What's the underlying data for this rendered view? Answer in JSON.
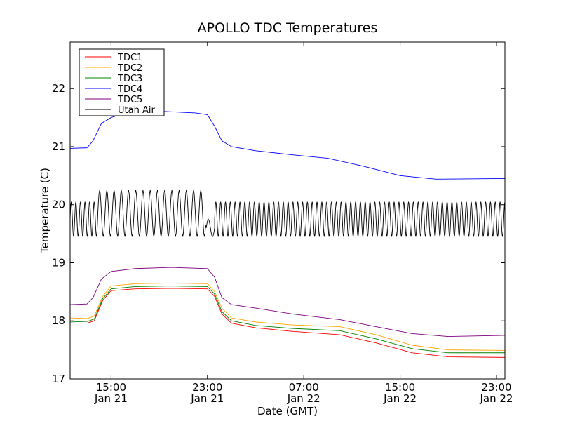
{
  "chart_data": {
    "type": "line",
    "title": "APOLLO TDC Temperatures",
    "xlabel": "Date (GMT)",
    "ylabel": "Temperature (C)",
    "ylim": [
      17,
      22.8
    ],
    "xlim_hours": [
      11.6,
      47.7
    ],
    "yticks": [
      17,
      18,
      19,
      20,
      21,
      22
    ],
    "xticks": [
      {
        "at": 15,
        "line1": "15:00",
        "line2": "Jan 21"
      },
      {
        "at": 23,
        "line1": "23:00",
        "line2": "Jan 21"
      },
      {
        "at": 31,
        "line1": "07:00",
        "line2": "Jan 22"
      },
      {
        "at": 39,
        "line1": "15:00",
        "line2": "Jan 22"
      },
      {
        "at": 47,
        "line1": "23:00",
        "line2": "Jan 22"
      }
    ],
    "legend_position": "top-left",
    "series": [
      {
        "name": "TDC1",
        "color": "#ff0000",
        "x": [
          11.6,
          13.0,
          13.6,
          14.3,
          15.0,
          17.0,
          20.0,
          23.0,
          23.6,
          24.2,
          25.0,
          27.0,
          30.0,
          34.0,
          37.0,
          40.0,
          43.0,
          47.7
        ],
        "y": [
          17.96,
          17.96,
          18.0,
          18.35,
          18.52,
          18.55,
          18.56,
          18.55,
          18.42,
          18.12,
          17.96,
          17.88,
          17.82,
          17.76,
          17.62,
          17.45,
          17.38,
          17.37
        ]
      },
      {
        "name": "TDC2",
        "color": "#ffa500",
        "x": [
          11.6,
          13.0,
          13.6,
          14.3,
          15.0,
          17.0,
          20.0,
          23.0,
          23.6,
          24.2,
          25.0,
          27.0,
          30.0,
          34.0,
          37.0,
          40.0,
          43.0,
          47.7
        ],
        "y": [
          18.05,
          18.04,
          18.08,
          18.42,
          18.6,
          18.64,
          18.65,
          18.64,
          18.5,
          18.22,
          18.05,
          17.98,
          17.93,
          17.9,
          17.76,
          17.58,
          17.5,
          17.49
        ]
      },
      {
        "name": "TDC3",
        "color": "#008000",
        "x": [
          11.6,
          13.0,
          13.6,
          14.3,
          15.0,
          17.0,
          20.0,
          23.0,
          23.6,
          24.2,
          25.0,
          27.0,
          30.0,
          34.0,
          37.0,
          40.0,
          43.0,
          47.7
        ],
        "y": [
          17.98,
          17.99,
          18.03,
          18.38,
          18.55,
          18.59,
          18.6,
          18.59,
          18.46,
          18.16,
          18.0,
          17.92,
          17.87,
          17.83,
          17.69,
          17.52,
          17.45,
          17.45
        ]
      },
      {
        "name": "TDC4",
        "color": "#0000ff",
        "x": [
          11.6,
          13.0,
          13.5,
          14.2,
          15.0,
          16.5,
          18.0,
          20.0,
          22.0,
          23.0,
          23.6,
          24.2,
          25.0,
          27.0,
          30.0,
          33.0,
          36.0,
          39.0,
          42.0,
          47.7
        ],
        "y": [
          20.97,
          20.98,
          21.1,
          21.4,
          21.5,
          21.6,
          21.62,
          21.6,
          21.58,
          21.55,
          21.35,
          21.1,
          21.0,
          20.93,
          20.86,
          20.8,
          20.66,
          20.5,
          20.44,
          20.45
        ]
      },
      {
        "name": "TDC5",
        "color": "#800080",
        "x": [
          11.6,
          13.0,
          13.5,
          14.2,
          15.0,
          17.0,
          20.0,
          23.0,
          23.6,
          24.2,
          25.0,
          27.0,
          30.0,
          34.0,
          37.0,
          40.0,
          43.0,
          47.7
        ],
        "y": [
          18.28,
          18.29,
          18.4,
          18.72,
          18.85,
          18.9,
          18.92,
          18.9,
          18.75,
          18.4,
          18.28,
          18.22,
          18.12,
          18.02,
          17.9,
          17.78,
          17.73,
          17.75
        ]
      },
      {
        "name": "Utah Air",
        "color": "#000000",
        "oscillation": [
          {
            "x0": 11.6,
            "x1": 13.9,
            "center": 19.75,
            "amp": 0.3,
            "period": 0.38
          },
          {
            "x0": 13.9,
            "x1": 22.9,
            "center": 19.85,
            "amp": 0.4,
            "period": 0.6
          },
          {
            "x0": 22.9,
            "x1": 23.6,
            "center": 19.6,
            "amp": 0.15,
            "period": 0.7
          },
          {
            "x0": 23.6,
            "x1": 47.7,
            "center": 19.75,
            "amp": 0.3,
            "period": 0.4
          }
        ]
      }
    ]
  }
}
